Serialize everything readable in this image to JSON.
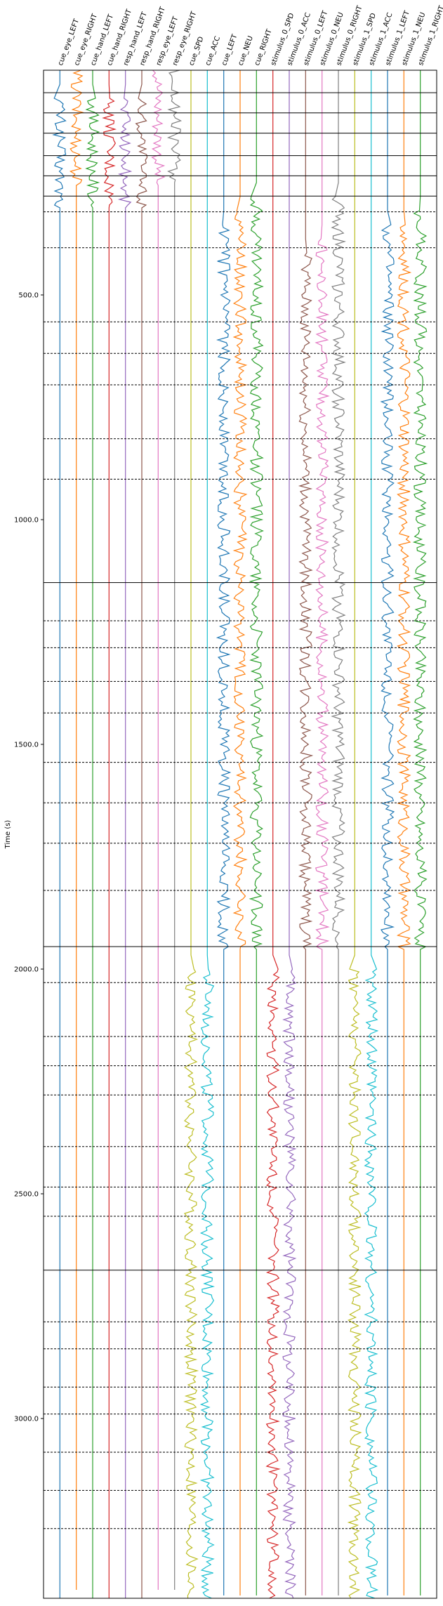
{
  "chart_data": {
    "type": "line",
    "title": "",
    "xlabel": "",
    "ylabel": "Time (s)",
    "y_ticks": [
      "500.0",
      "1000.0",
      "1500.0",
      "2000.0",
      "2500.0",
      "3000.0"
    ],
    "y_tick_values": [
      500,
      1000,
      1500,
      2000,
      2500,
      3000
    ],
    "ylim": [
      0,
      3400
    ],
    "y_inverted": true,
    "grid": false,
    "series": [
      {
        "name": "cue_eye_LEFT",
        "color": "#1f77b4",
        "active": [
          [
            50,
            300
          ]
        ]
      },
      {
        "name": "cue_eye_RIGHT",
        "color": "#ff7f0e",
        "active": [
          [
            0,
            250
          ]
        ]
      },
      {
        "name": "cue_hand_LEFT",
        "color": "#2ca02c",
        "active": [
          [
            50,
            300
          ]
        ]
      },
      {
        "name": "cue_hand_RIGHT",
        "color": "#d62728",
        "active": [
          [
            50,
            300
          ]
        ]
      },
      {
        "name": "resp_hand_LEFT",
        "color": "#9467bd",
        "active": [
          [
            50,
            300
          ]
        ]
      },
      {
        "name": "resp_hand_RIGHT",
        "color": "#8c564b",
        "active": [
          [
            50,
            300
          ]
        ]
      },
      {
        "name": "resp_eye_LEFT",
        "color": "#e377c2",
        "active": [
          [
            0,
            250
          ]
        ]
      },
      {
        "name": "resp_eye_RIGHT",
        "color": "#7f7f7f",
        "active": [
          [
            0,
            250
          ]
        ]
      },
      {
        "name": "cue_SPD",
        "color": "#bcbd22",
        "active": [
          [
            1980,
            3400
          ]
        ]
      },
      {
        "name": "cue_ACC",
        "color": "#17becf",
        "active": [
          [
            1980,
            3400
          ]
        ]
      },
      {
        "name": "cue_LEFT",
        "color": "#1f77b4",
        "active": [
          [
            330,
            1950
          ]
        ]
      },
      {
        "name": "cue_NEU",
        "color": "#ff7f0e",
        "active": [
          [
            300,
            1950
          ]
        ]
      },
      {
        "name": "cue_RIGHT",
        "color": "#2ca02c",
        "active": [
          [
            280,
            1950
          ]
        ]
      },
      {
        "name": "stimulus_0_SPD",
        "color": "#d62728",
        "active": [
          [
            2000,
            3400
          ]
        ]
      },
      {
        "name": "stimulus_0_ACC",
        "color": "#9467bd",
        "active": [
          [
            2000,
            3400
          ]
        ]
      },
      {
        "name": "stimulus_0_LEFT",
        "color": "#8c564b",
        "active": [
          [
            380,
            1950
          ]
        ]
      },
      {
        "name": "stimulus_0_NEU",
        "color": "#e377c2",
        "active": [
          [
            350,
            1950
          ]
        ]
      },
      {
        "name": "stimulus_0_RIGHT",
        "color": "#7f7f7f",
        "active": [
          [
            280,
            1950
          ]
        ]
      },
      {
        "name": "stimulus_1_SPD",
        "color": "#bcbd22",
        "active": [
          [
            1980,
            3400
          ]
        ]
      },
      {
        "name": "stimulus_1_ACC",
        "color": "#17becf",
        "active": [
          [
            1980,
            3400
          ]
        ]
      },
      {
        "name": "stimulus_1_LEFT",
        "color": "#1f77b4",
        "active": [
          [
            330,
            1950
          ]
        ]
      },
      {
        "name": "stimulus_1_NEU",
        "color": "#ff7f0e",
        "active": [
          [
            330,
            1950
          ]
        ]
      },
      {
        "name": "stimulus_1_RIGHT",
        "color": "#2ca02c",
        "active": [
          [
            300,
            1950
          ]
        ]
      }
    ],
    "solid_boundaries": [
      50,
      95,
      140,
      190,
      235,
      280,
      1140,
      1950,
      2670
    ],
    "dashed_boundaries": [
      315,
      395,
      560,
      630,
      700,
      820,
      910,
      1225,
      1285,
      1360,
      1430,
      1540,
      1630,
      1720,
      1825,
      2030,
      2150,
      2215,
      2280,
      2395,
      2485,
      2550,
      2785,
      2845,
      2930,
      2990,
      3075,
      3160,
      3245
    ]
  }
}
